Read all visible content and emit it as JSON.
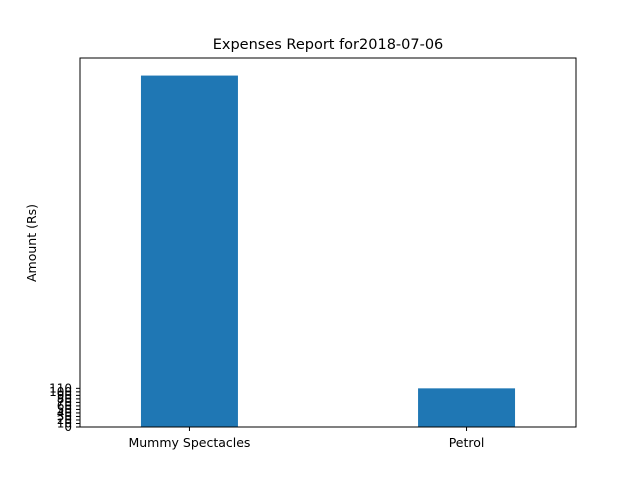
{
  "chart_data": {
    "type": "bar",
    "title": "Expenses Report for2018-07-06",
    "xlabel": "",
    "ylabel": "Amount (Rs)",
    "categories": [
      "Mummy Spectacles",
      "Petrol"
    ],
    "values": [
      1000,
      110
    ],
    "ylim": [
      0,
      1050
    ],
    "yticks": [
      0,
      10,
      20,
      30,
      40,
      50,
      60,
      70,
      80,
      90,
      100,
      110
    ],
    "grid": false,
    "legend": "none",
    "colors": {
      "bar": "#1f77b4",
      "axes": "#000000",
      "background": "#ffffff"
    }
  }
}
